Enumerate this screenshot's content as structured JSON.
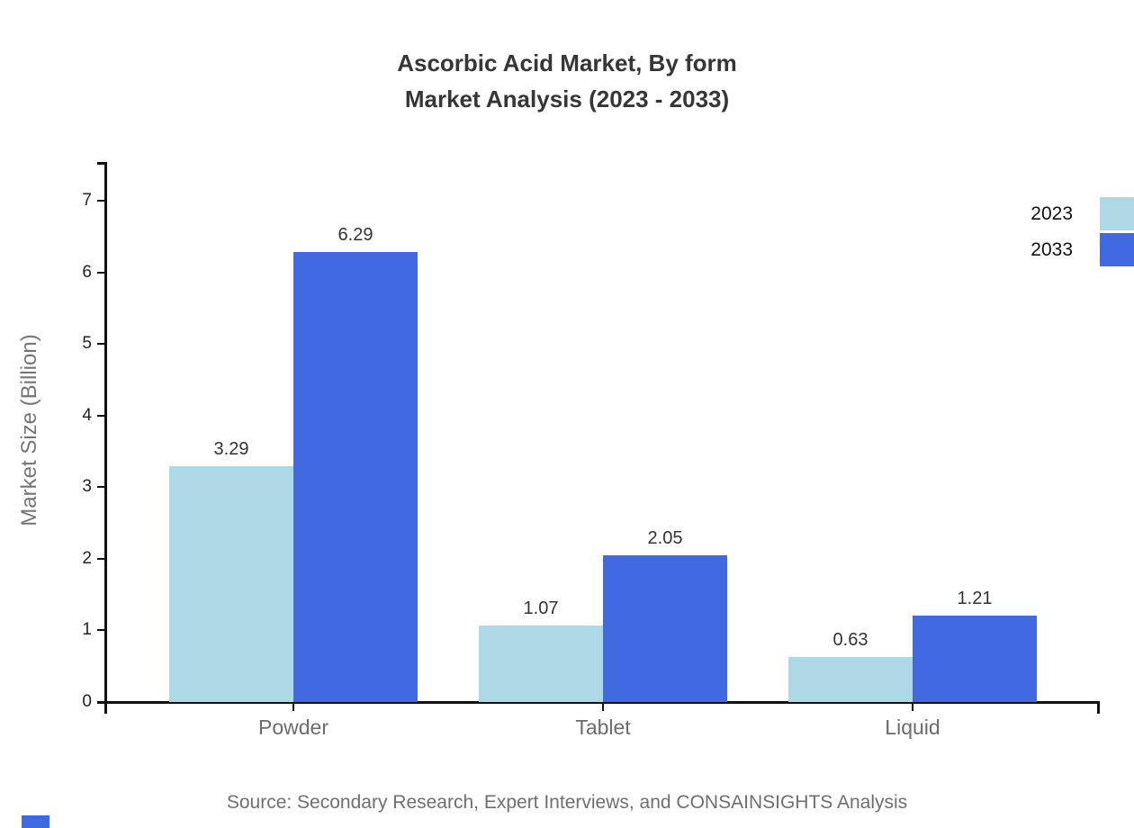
{
  "title": {
    "line1": "Ascorbic Acid Market, By form",
    "line2": "Market Analysis (2023 - 2033)"
  },
  "source": "Source: Secondary Research, Expert Interviews, and CONSAINSIGHTS Analysis",
  "chart_data": {
    "type": "bar",
    "title": "Ascorbic Acid Market, By form Market Analysis (2023 - 2033)",
    "categories": [
      "Powder",
      "Tablet",
      "Liquid"
    ],
    "series": [
      {
        "name": "2023",
        "color": "#ADD8E6",
        "values": [
          3.29,
          1.07,
          0.63
        ]
      },
      {
        "name": "2033",
        "color": "#4169E1",
        "values": [
          6.29,
          2.05,
          1.21
        ]
      }
    ],
    "xlabel": "",
    "ylabel": "Market Size (Billion)",
    "ylim": [
      0,
      7.5
    ],
    "yticks": [
      0,
      1,
      2,
      3,
      4,
      5,
      6,
      7
    ],
    "grid": false,
    "legend_position": "top-right",
    "value_labels": true
  },
  "colors": {
    "series_2023": "#ADD8E6",
    "series_2033": "#4169E1",
    "axis": "#111111",
    "title_text": "#363636",
    "ytick_label": "#222222",
    "category_label": "#6b6b6b",
    "value_label": "#333333",
    "ylabel_text": "#757575",
    "source_text": "#6f6f6f",
    "watermark": "#4169E1"
  }
}
